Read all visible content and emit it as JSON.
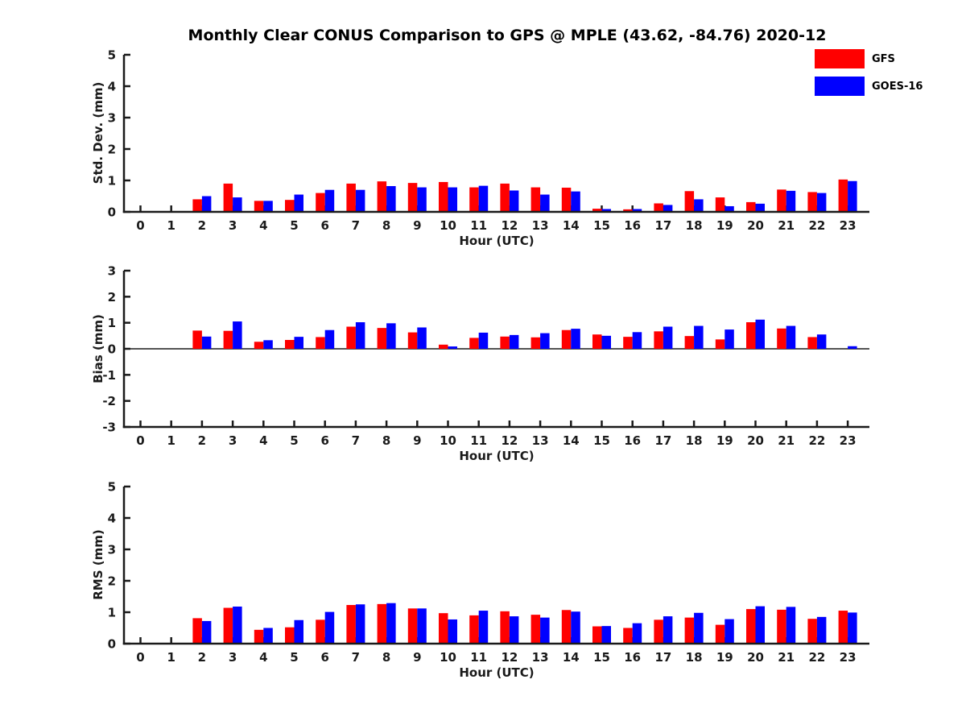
{
  "figure": {
    "title": "Monthly Clear CONUS Comparison to GPS @ MPLE (43.62, -84.76) 2020-12",
    "background": "#ffffff",
    "axis_color": "#1a1a1a"
  },
  "legend": {
    "position": "top-right",
    "items": [
      {
        "label": "GFS",
        "color": "#ff0000"
      },
      {
        "label": "GOES-16",
        "color": "#0000ff"
      }
    ]
  },
  "chart_data": [
    {
      "type": "bar",
      "title": "",
      "ylabel": "Std. Dev. (mm)",
      "xlabel": "Hour (UTC)",
      "ylim": [
        0,
        5
      ],
      "yticks": [
        0,
        1,
        2,
        3,
        4,
        5
      ],
      "grid": false,
      "categories": [
        "0",
        "1",
        "2",
        "3",
        "4",
        "5",
        "6",
        "7",
        "8",
        "9",
        "10",
        "11",
        "12",
        "13",
        "14",
        "15",
        "16",
        "17",
        "18",
        "19",
        "20",
        "21",
        "22",
        "23"
      ],
      "series": [
        {
          "name": "GFS",
          "color": "#ff0000",
          "values": [
            null,
            null,
            0.4,
            0.9,
            0.35,
            0.38,
            0.6,
            0.9,
            0.97,
            0.92,
            0.95,
            0.78,
            0.9,
            0.78,
            0.77,
            0.1,
            0.08,
            0.27,
            0.66,
            0.46,
            0.31,
            0.71,
            0.63,
            1.03
          ]
        },
        {
          "name": "GOES-16",
          "color": "#0000ff",
          "values": [
            null,
            null,
            0.5,
            0.46,
            0.35,
            0.55,
            0.7,
            0.7,
            0.82,
            0.78,
            0.78,
            0.83,
            0.68,
            0.55,
            0.65,
            0.09,
            0.09,
            0.22,
            0.4,
            0.18,
            0.26,
            0.67,
            0.6,
            0.98
          ]
        }
      ]
    },
    {
      "type": "bar",
      "title": "",
      "ylabel": "Bias (mm)",
      "xlabel": "Hour (UTC)",
      "ylim": [
        -3,
        3
      ],
      "yticks": [
        -3,
        -2,
        -1,
        0,
        1,
        2,
        3
      ],
      "grid": false,
      "categories": [
        "0",
        "1",
        "2",
        "3",
        "4",
        "5",
        "6",
        "7",
        "8",
        "9",
        "10",
        "11",
        "12",
        "13",
        "14",
        "15",
        "16",
        "17",
        "18",
        "19",
        "20",
        "21",
        "22",
        "23"
      ],
      "series": [
        {
          "name": "GFS",
          "color": "#ff0000",
          "values": [
            null,
            null,
            0.7,
            0.69,
            0.27,
            0.34,
            0.45,
            0.85,
            0.8,
            0.63,
            0.16,
            0.42,
            0.47,
            0.44,
            0.72,
            0.55,
            0.46,
            0.67,
            0.49,
            0.36,
            1.02,
            0.78,
            0.45,
            null
          ]
        },
        {
          "name": "GOES-16",
          "color": "#0000ff",
          "values": [
            null,
            null,
            0.47,
            1.05,
            0.33,
            0.46,
            0.72,
            1.02,
            0.98,
            0.82,
            0.09,
            0.62,
            0.53,
            0.6,
            0.77,
            0.5,
            0.64,
            0.85,
            0.88,
            0.74,
            1.12,
            0.88,
            0.55,
            0.1
          ]
        }
      ]
    },
    {
      "type": "bar",
      "title": "",
      "ylabel": "RMS (mm)",
      "xlabel": "Hour (UTC)",
      "ylim": [
        0,
        5
      ],
      "yticks": [
        0,
        1,
        2,
        3,
        4,
        5
      ],
      "grid": false,
      "categories": [
        "0",
        "1",
        "2",
        "3",
        "4",
        "5",
        "6",
        "7",
        "8",
        "9",
        "10",
        "11",
        "12",
        "13",
        "14",
        "15",
        "16",
        "17",
        "18",
        "19",
        "20",
        "21",
        "22",
        "23"
      ],
      "series": [
        {
          "name": "GFS",
          "color": "#ff0000",
          "values": [
            null,
            null,
            0.81,
            1.14,
            0.44,
            0.52,
            0.76,
            1.23,
            1.26,
            1.12,
            0.97,
            0.9,
            1.03,
            0.92,
            1.07,
            0.55,
            0.5,
            0.76,
            0.83,
            0.6,
            1.1,
            1.08,
            0.79,
            1.05
          ]
        },
        {
          "name": "GOES-16",
          "color": "#0000ff",
          "values": [
            null,
            null,
            0.72,
            1.18,
            0.5,
            0.75,
            1.01,
            1.25,
            1.29,
            1.12,
            0.77,
            1.05,
            0.87,
            0.83,
            1.02,
            0.56,
            0.65,
            0.87,
            0.98,
            0.78,
            1.19,
            1.17,
            0.85,
            0.99
          ]
        }
      ]
    }
  ]
}
